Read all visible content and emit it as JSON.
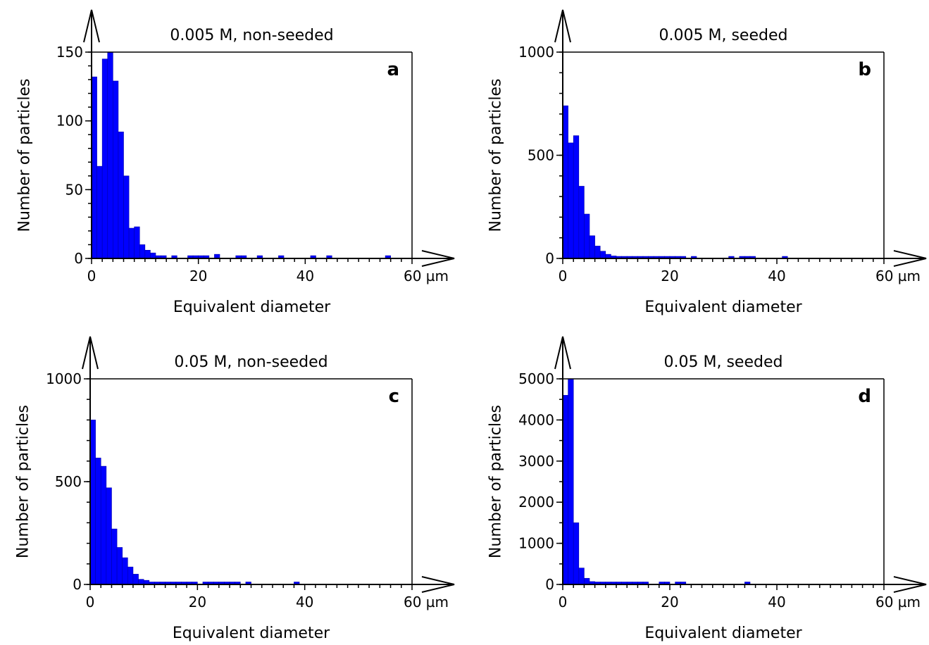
{
  "chart_data": [
    {
      "type": "bar",
      "panel": "a",
      "title": "0.005 M, non-seeded",
      "xlabel": "Equivalent diameter",
      "ylabel": "Number of particles",
      "x_unit": "µm",
      "xlim": [
        0,
        60
      ],
      "ylim": [
        0,
        150
      ],
      "x_ticks": [
        0,
        20,
        40,
        60
      ],
      "y_ticks": [
        0,
        50,
        100,
        150
      ],
      "bin_width": 1,
      "bins": [
        {
          "x": 0,
          "value": 132
        },
        {
          "x": 1,
          "value": 67
        },
        {
          "x": 2,
          "value": 145
        },
        {
          "x": 3,
          "value": 150
        },
        {
          "x": 4,
          "value": 129
        },
        {
          "x": 5,
          "value": 92
        },
        {
          "x": 6,
          "value": 60
        },
        {
          "x": 7,
          "value": 22
        },
        {
          "x": 8,
          "value": 23
        },
        {
          "x": 9,
          "value": 10
        },
        {
          "x": 10,
          "value": 6
        },
        {
          "x": 11,
          "value": 4
        },
        {
          "x": 12,
          "value": 2
        },
        {
          "x": 13,
          "value": 2
        },
        {
          "x": 15,
          "value": 2
        },
        {
          "x": 18,
          "value": 2
        },
        {
          "x": 19,
          "value": 2
        },
        {
          "x": 20,
          "value": 2
        },
        {
          "x": 21,
          "value": 2
        },
        {
          "x": 23,
          "value": 3
        },
        {
          "x": 27,
          "value": 2
        },
        {
          "x": 28,
          "value": 2
        },
        {
          "x": 31,
          "value": 2
        },
        {
          "x": 35,
          "value": 2
        },
        {
          "x": 41,
          "value": 2
        },
        {
          "x": 44,
          "value": 2
        },
        {
          "x": 55,
          "value": 2
        }
      ]
    },
    {
      "type": "bar",
      "panel": "b",
      "title": "0.005 M, seeded",
      "xlabel": "Equivalent diameter",
      "ylabel": "Number of particles",
      "x_unit": "µm",
      "xlim": [
        0,
        60
      ],
      "ylim": [
        0,
        1000
      ],
      "x_ticks": [
        0,
        20,
        40,
        60
      ],
      "y_ticks": [
        0,
        500,
        1000
      ],
      "bin_width": 1,
      "bins": [
        {
          "x": 0,
          "value": 740
        },
        {
          "x": 1,
          "value": 560
        },
        {
          "x": 2,
          "value": 595
        },
        {
          "x": 3,
          "value": 350
        },
        {
          "x": 4,
          "value": 215
        },
        {
          "x": 5,
          "value": 110
        },
        {
          "x": 6,
          "value": 60
        },
        {
          "x": 7,
          "value": 35
        },
        {
          "x": 8,
          "value": 20
        },
        {
          "x": 9,
          "value": 12
        },
        {
          "x": 10,
          "value": 10
        },
        {
          "x": 11,
          "value": 10
        },
        {
          "x": 12,
          "value": 10
        },
        {
          "x": 13,
          "value": 10
        },
        {
          "x": 14,
          "value": 10
        },
        {
          "x": 15,
          "value": 10
        },
        {
          "x": 16,
          "value": 10
        },
        {
          "x": 17,
          "value": 10
        },
        {
          "x": 18,
          "value": 10
        },
        {
          "x": 19,
          "value": 10
        },
        {
          "x": 20,
          "value": 10
        },
        {
          "x": 21,
          "value": 10
        },
        {
          "x": 22,
          "value": 10
        },
        {
          "x": 24,
          "value": 10
        },
        {
          "x": 31,
          "value": 10
        },
        {
          "x": 33,
          "value": 10
        },
        {
          "x": 34,
          "value": 10
        },
        {
          "x": 35,
          "value": 10
        },
        {
          "x": 41,
          "value": 10
        }
      ]
    },
    {
      "type": "bar",
      "panel": "c",
      "title": "0.05 M, non-seeded",
      "xlabel": "Equivalent diameter",
      "ylabel": "Number of particles",
      "x_unit": "µm",
      "xlim": [
        0,
        60
      ],
      "ylim": [
        0,
        1000
      ],
      "x_ticks": [
        0,
        20,
        40,
        60
      ],
      "y_ticks": [
        0,
        500,
        1000
      ],
      "bin_width": 1,
      "bins": [
        {
          "x": 0,
          "value": 800
        },
        {
          "x": 1,
          "value": 615
        },
        {
          "x": 2,
          "value": 575
        },
        {
          "x": 3,
          "value": 470
        },
        {
          "x": 4,
          "value": 270
        },
        {
          "x": 5,
          "value": 180
        },
        {
          "x": 6,
          "value": 130
        },
        {
          "x": 7,
          "value": 85
        },
        {
          "x": 8,
          "value": 50
        },
        {
          "x": 9,
          "value": 25
        },
        {
          "x": 10,
          "value": 20
        },
        {
          "x": 11,
          "value": 12
        },
        {
          "x": 12,
          "value": 12
        },
        {
          "x": 13,
          "value": 12
        },
        {
          "x": 14,
          "value": 12
        },
        {
          "x": 15,
          "value": 12
        },
        {
          "x": 16,
          "value": 12
        },
        {
          "x": 17,
          "value": 12
        },
        {
          "x": 18,
          "value": 12
        },
        {
          "x": 19,
          "value": 12
        },
        {
          "x": 21,
          "value": 12
        },
        {
          "x": 22,
          "value": 12
        },
        {
          "x": 23,
          "value": 12
        },
        {
          "x": 24,
          "value": 12
        },
        {
          "x": 25,
          "value": 12
        },
        {
          "x": 26,
          "value": 12
        },
        {
          "x": 27,
          "value": 12
        },
        {
          "x": 29,
          "value": 12
        },
        {
          "x": 38,
          "value": 12
        }
      ]
    },
    {
      "type": "bar",
      "panel": "d",
      "title": "0.05 M, seeded",
      "xlabel": "Equivalent diameter",
      "ylabel": "Number of particles",
      "x_unit": "µm",
      "xlim": [
        0,
        60
      ],
      "ylim": [
        0,
        5000
      ],
      "x_ticks": [
        0,
        20,
        40,
        60
      ],
      "y_ticks": [
        0,
        1000,
        2000,
        3000,
        4000,
        5000
      ],
      "bin_width": 1,
      "bins": [
        {
          "x": 0,
          "value": 4600
        },
        {
          "x": 1,
          "value": 5000
        },
        {
          "x": 2,
          "value": 1500
        },
        {
          "x": 3,
          "value": 400
        },
        {
          "x": 4,
          "value": 150
        },
        {
          "x": 5,
          "value": 70
        },
        {
          "x": 6,
          "value": 60
        },
        {
          "x": 7,
          "value": 60
        },
        {
          "x": 8,
          "value": 60
        },
        {
          "x": 9,
          "value": 60
        },
        {
          "x": 10,
          "value": 60
        },
        {
          "x": 11,
          "value": 60
        },
        {
          "x": 12,
          "value": 60
        },
        {
          "x": 13,
          "value": 60
        },
        {
          "x": 14,
          "value": 60
        },
        {
          "x": 15,
          "value": 60
        },
        {
          "x": 18,
          "value": 60
        },
        {
          "x": 19,
          "value": 60
        },
        {
          "x": 21,
          "value": 60
        },
        {
          "x": 22,
          "value": 60
        },
        {
          "x": 34,
          "value": 60
        }
      ]
    }
  ]
}
